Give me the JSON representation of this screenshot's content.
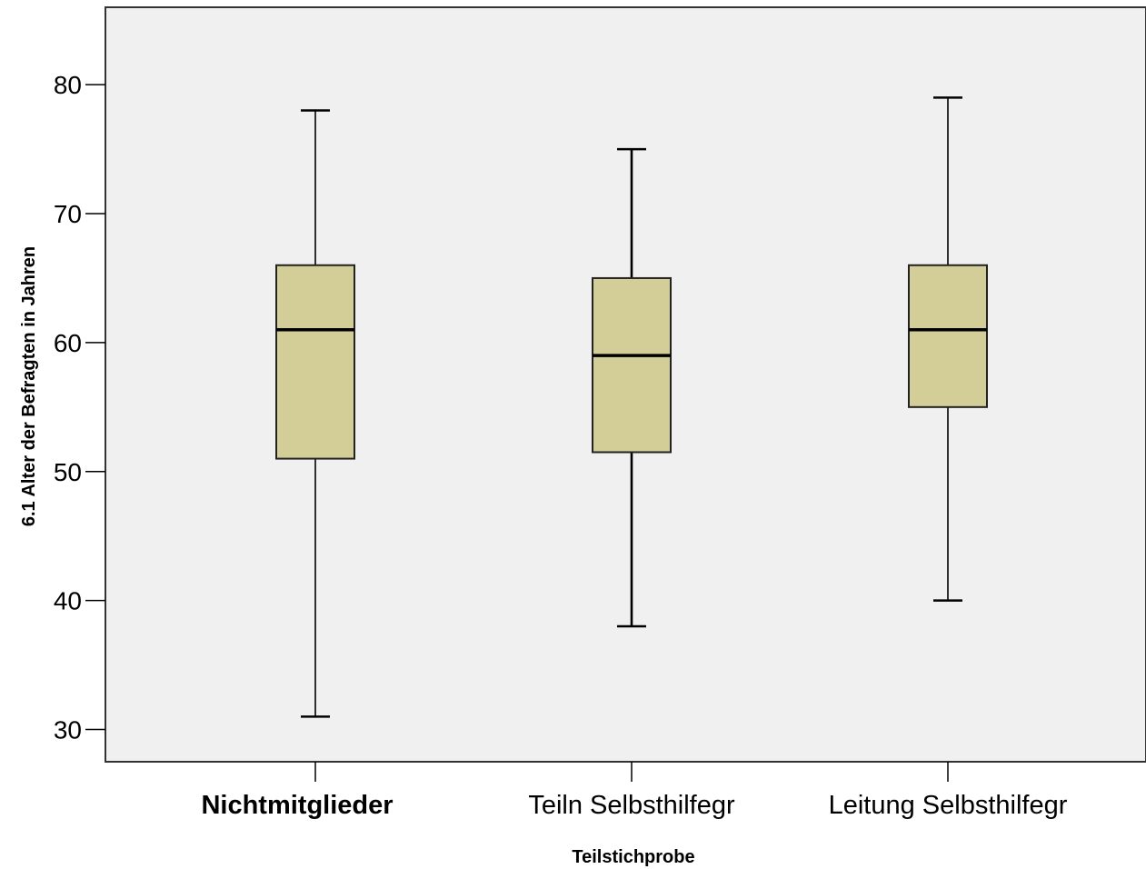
{
  "chart_data": {
    "type": "boxplot",
    "xlabel": "Teilstichprobe",
    "ylabel": "6.1 Alter der Befragten in Jahren",
    "ylim": [
      27.5,
      86
    ],
    "yticks": [
      30,
      40,
      50,
      60,
      70,
      80
    ],
    "grid": false,
    "categories": [
      "Nichtmitglieder",
      "Teiln Selbsthilfegr",
      "Leitung Selbsthilfegr"
    ],
    "series": [
      {
        "category": "Nichtmitglieder",
        "min": 31,
        "q1": 51,
        "median": 61,
        "q3": 66,
        "max": 78
      },
      {
        "category": "Teiln Selbsthilfegr",
        "min": 38,
        "q1": 51.5,
        "median": 59,
        "q3": 65,
        "max": 75
      },
      {
        "category": "Leitung Selbsthilfegr",
        "min": 40,
        "q1": 55,
        "median": 61,
        "q3": 66,
        "max": 79
      }
    ]
  },
  "colors": {
    "plot_background": "#f0f0f0",
    "box_fill": "#d3ce97",
    "line": "#000000"
  }
}
